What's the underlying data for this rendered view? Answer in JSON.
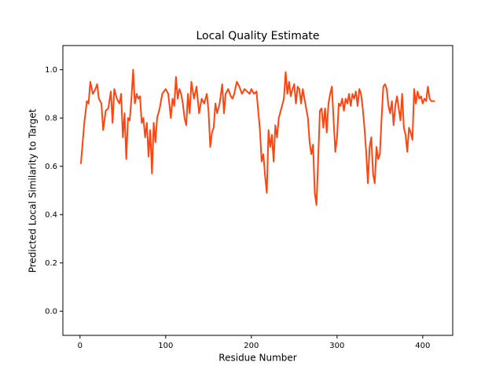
{
  "chart_data": {
    "type": "line",
    "title": "Local Quality Estimate",
    "xlabel": "Residue Number",
    "ylabel": "Predicted Local Similarity to Target",
    "color": "#ff4511",
    "x": [
      1,
      5,
      8,
      10,
      12,
      15,
      18,
      20,
      22,
      25,
      27,
      30,
      33,
      36,
      38,
      40,
      43,
      46,
      48,
      50,
      52,
      54,
      56,
      58,
      60,
      62,
      64,
      66,
      68,
      70,
      72,
      74,
      76,
      78,
      80,
      82,
      84,
      86,
      88,
      90,
      93,
      96,
      100,
      103,
      106,
      108,
      110,
      112,
      114,
      116,
      118,
      120,
      122,
      124,
      126,
      128,
      130,
      133,
      136,
      139,
      142,
      145,
      148,
      150,
      152,
      154,
      156,
      158,
      160,
      163,
      166,
      168,
      170,
      173,
      176,
      178,
      180,
      183,
      186,
      189,
      192,
      195,
      198,
      200,
      203,
      206,
      208,
      210,
      212,
      214,
      216,
      218,
      220,
      222,
      224,
      226,
      228,
      230,
      232,
      235,
      238,
      240,
      242,
      244,
      246,
      248,
      250,
      252,
      254,
      256,
      258,
      260,
      262,
      264,
      266,
      268,
      270,
      272,
      274,
      276,
      278,
      280,
      282,
      284,
      286,
      288,
      290,
      292,
      294,
      296,
      298,
      300,
      302,
      304,
      306,
      308,
      310,
      312,
      314,
      316,
      318,
      320,
      322,
      324,
      326,
      328,
      330,
      332,
      334,
      336,
      338,
      340,
      342,
      344,
      346,
      348,
      350,
      352,
      354,
      356,
      358,
      360,
      362,
      364,
      366,
      368,
      370,
      372,
      374,
      376,
      378,
      380,
      382,
      384,
      386,
      388,
      390,
      392,
      394,
      396,
      398,
      400,
      402,
      404,
      406,
      408,
      410,
      414
    ],
    "values": [
      0.61,
      0.78,
      0.87,
      0.86,
      0.95,
      0.9,
      0.92,
      0.94,
      0.88,
      0.86,
      0.75,
      0.83,
      0.84,
      0.91,
      0.78,
      0.92,
      0.88,
      0.86,
      0.9,
      0.72,
      0.82,
      0.63,
      0.8,
      0.79,
      0.88,
      1.0,
      0.86,
      0.9,
      0.88,
      0.89,
      0.78,
      0.8,
      0.72,
      0.78,
      0.64,
      0.75,
      0.57,
      0.78,
      0.7,
      0.8,
      0.84,
      0.9,
      0.92,
      0.9,
      0.8,
      0.88,
      0.85,
      0.97,
      0.88,
      0.92,
      0.9,
      0.86,
      0.8,
      0.77,
      0.9,
      0.82,
      0.95,
      0.88,
      0.93,
      0.82,
      0.88,
      0.86,
      0.9,
      0.83,
      0.68,
      0.74,
      0.76,
      0.86,
      0.82,
      0.86,
      0.94,
      0.82,
      0.9,
      0.92,
      0.89,
      0.88,
      0.9,
      0.95,
      0.93,
      0.9,
      0.92,
      0.91,
      0.9,
      0.92,
      0.9,
      0.91,
      0.83,
      0.75,
      0.62,
      0.65,
      0.56,
      0.49,
      0.75,
      0.68,
      0.73,
      0.62,
      0.77,
      0.72,
      0.8,
      0.84,
      0.88,
      0.99,
      0.9,
      0.95,
      0.89,
      0.92,
      0.94,
      0.86,
      0.93,
      0.92,
      0.86,
      0.92,
      0.88,
      0.84,
      0.8,
      0.7,
      0.65,
      0.69,
      0.49,
      0.44,
      0.63,
      0.83,
      0.84,
      0.76,
      0.84,
      0.74,
      0.86,
      0.9,
      0.93,
      0.79,
      0.66,
      0.72,
      0.86,
      0.85,
      0.88,
      0.83,
      0.88,
      0.86,
      0.9,
      0.85,
      0.9,
      0.88,
      0.91,
      0.85,
      0.92,
      0.9,
      0.84,
      0.76,
      0.66,
      0.53,
      0.68,
      0.72,
      0.57,
      0.53,
      0.68,
      0.63,
      0.65,
      0.8,
      0.93,
      0.94,
      0.92,
      0.85,
      0.82,
      0.87,
      0.77,
      0.85,
      0.89,
      0.84,
      0.79,
      0.9,
      0.76,
      0.73,
      0.66,
      0.76,
      0.74,
      0.71,
      0.92,
      0.86,
      0.91,
      0.88,
      0.89,
      0.86,
      0.88,
      0.87,
      0.93,
      0.88,
      0.87,
      0.87
    ],
    "xlim": [
      -20,
      435
    ],
    "xticks": [
      0,
      100,
      200,
      300,
      400
    ],
    "ylim": [
      -0.1,
      1.1
    ],
    "yticks": [
      {
        "value": 0,
        "label": "0.0"
      },
      0.2,
      0.4,
      0.6,
      0.8,
      {
        "value": 1,
        "label": "1.0"
      }
    ]
  }
}
